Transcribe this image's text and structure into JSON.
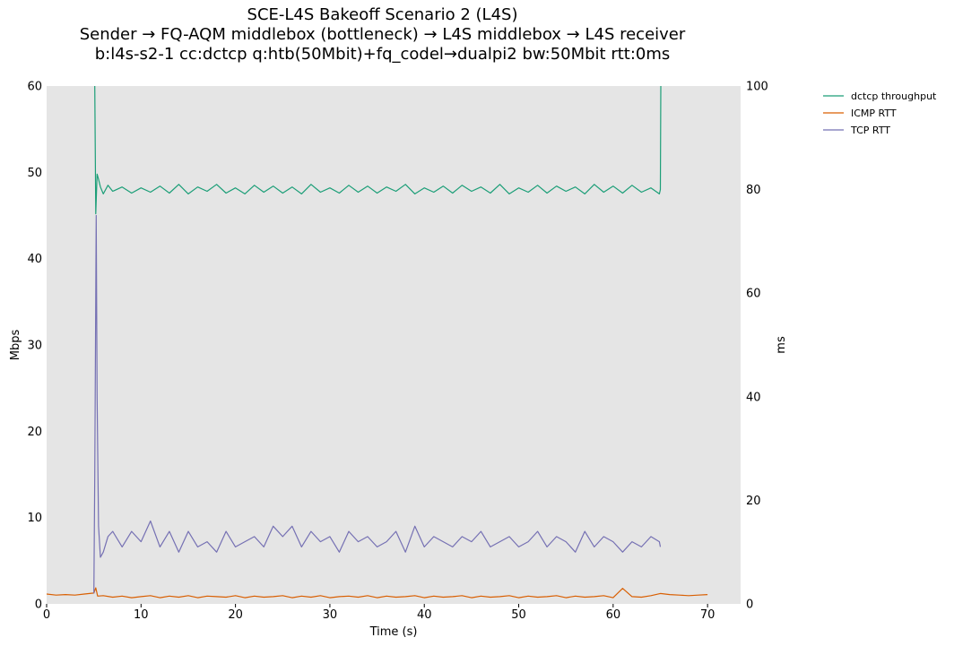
{
  "chart_data": {
    "type": "line",
    "title": [
      "SCE-L4S Bakeoff Scenario 2 (L4S)",
      "Sender → FQ-AQM middlebox (bottleneck) → L4S middlebox → L4S receiver",
      "b:l4s-s2-1 cc:dctcp q:htb(50Mbit)+fq_codel→dualpi2 bw:50Mbit rtt:0ms"
    ],
    "xlabel": "Time (s)",
    "ylabel_left": "Mbps",
    "ylabel_right": "ms",
    "xlim": [
      0,
      73.5
    ],
    "ylim_left": [
      0,
      60
    ],
    "ylim_right": [
      0,
      100
    ],
    "xticks": [
      "0",
      "10",
      "20",
      "30",
      "40",
      "50",
      "60",
      "70"
    ],
    "yticks_left": [
      "0",
      "10",
      "20",
      "30",
      "40",
      "50",
      "60"
    ],
    "yticks_right": [
      "0",
      "20",
      "40",
      "60",
      "80",
      "100"
    ],
    "grid": false,
    "legend_position": "outside-right-top",
    "background": "#e5e5e5",
    "series": [
      {
        "name": "dctcp throughput",
        "axis": "left",
        "color": "#1b9e77",
        "x": [
          5.1,
          5.2,
          5.35,
          5.5,
          5.7,
          6.0,
          6.5,
          7,
          8,
          9,
          10,
          11,
          12,
          13,
          14,
          15,
          16,
          17,
          18,
          19,
          20,
          21,
          22,
          23,
          24,
          25,
          26,
          27,
          28,
          29,
          30,
          31,
          32,
          33,
          34,
          35,
          36,
          37,
          38,
          39,
          40,
          41,
          42,
          43,
          44,
          45,
          46,
          47,
          48,
          49,
          50,
          51,
          52,
          53,
          54,
          55,
          56,
          57,
          58,
          59,
          60,
          61,
          62,
          63,
          64,
          64.9,
          65.0,
          65.05
        ],
        "y": [
          60,
          45.2,
          49.8,
          49.2,
          48.3,
          47.5,
          48.5,
          47.8,
          48.3,
          47.6,
          48.2,
          47.7,
          48.4,
          47.6,
          48.6,
          47.5,
          48.3,
          47.8,
          48.6,
          47.6,
          48.2,
          47.5,
          48.5,
          47.7,
          48.4,
          47.6,
          48.3,
          47.5,
          48.6,
          47.7,
          48.2,
          47.6,
          48.5,
          47.7,
          48.4,
          47.6,
          48.3,
          47.8,
          48.6,
          47.5,
          48.2,
          47.7,
          48.4,
          47.6,
          48.5,
          47.8,
          48.3,
          47.6,
          48.6,
          47.5,
          48.2,
          47.7,
          48.5,
          47.6,
          48.4,
          47.8,
          48.3,
          47.5,
          48.6,
          47.7,
          48.4,
          47.6,
          48.5,
          47.7,
          48.2,
          47.5,
          48.0,
          60
        ]
      },
      {
        "name": "ICMP RTT",
        "axis": "right",
        "color": "#d95f02",
        "x": [
          0,
          1,
          2,
          3,
          4,
          5,
          5.2,
          5.4,
          6,
          7,
          8,
          9,
          10,
          11,
          12,
          13,
          14,
          15,
          16,
          17,
          18,
          19,
          20,
          21,
          22,
          23,
          24,
          25,
          26,
          27,
          28,
          29,
          30,
          31,
          32,
          33,
          34,
          35,
          36,
          37,
          38,
          39,
          40,
          41,
          42,
          43,
          44,
          45,
          46,
          47,
          48,
          49,
          50,
          51,
          52,
          53,
          54,
          55,
          56,
          57,
          58,
          59,
          60,
          61,
          62,
          63,
          64,
          65,
          66,
          67,
          68,
          69,
          70
        ],
        "y": [
          1.9,
          1.7,
          1.8,
          1.7,
          1.9,
          2.1,
          3.1,
          1.5,
          1.6,
          1.3,
          1.5,
          1.2,
          1.4,
          1.6,
          1.2,
          1.5,
          1.3,
          1.6,
          1.2,
          1.5,
          1.4,
          1.3,
          1.6,
          1.2,
          1.5,
          1.3,
          1.4,
          1.6,
          1.2,
          1.5,
          1.3,
          1.6,
          1.2,
          1.4,
          1.5,
          1.3,
          1.6,
          1.2,
          1.5,
          1.3,
          1.4,
          1.6,
          1.2,
          1.5,
          1.3,
          1.4,
          1.6,
          1.2,
          1.5,
          1.3,
          1.4,
          1.6,
          1.2,
          1.5,
          1.3,
          1.4,
          1.6,
          1.2,
          1.5,
          1.3,
          1.4,
          1.6,
          1.2,
          3.0,
          1.4,
          1.3,
          1.6,
          2.0,
          1.8,
          1.7,
          1.6,
          1.7,
          1.8
        ]
      },
      {
        "name": "TCP RTT",
        "axis": "right",
        "color": "#7570b3",
        "x": [
          5.0,
          5.1,
          5.25,
          5.35,
          5.5,
          5.7,
          6.0,
          6.5,
          7,
          8,
          9,
          10,
          11,
          12,
          13,
          14,
          15,
          16,
          17,
          18,
          19,
          20,
          21,
          22,
          23,
          24,
          25,
          26,
          27,
          28,
          29,
          30,
          31,
          32,
          33,
          34,
          35,
          36,
          37,
          38,
          39,
          40,
          41,
          42,
          43,
          44,
          45,
          46,
          47,
          48,
          49,
          50,
          51,
          52,
          53,
          54,
          55,
          56,
          57,
          58,
          59,
          60,
          61,
          62,
          63,
          64,
          64.9,
          65.0
        ],
        "y": [
          2,
          25,
          75,
          40,
          15,
          9,
          10,
          13,
          14,
          11,
          14,
          12,
          16,
          11,
          14,
          10,
          14,
          11,
          12,
          10,
          14,
          11,
          12,
          13,
          11,
          15,
          13,
          15,
          11,
          14,
          12,
          13,
          10,
          14,
          12,
          13,
          11,
          12,
          14,
          10,
          15,
          11,
          13,
          12,
          11,
          13,
          12,
          14,
          11,
          12,
          13,
          11,
          12,
          14,
          11,
          13,
          12,
          10,
          14,
          11,
          13,
          12,
          10,
          12,
          11,
          13,
          12,
          11
        ]
      }
    ]
  }
}
